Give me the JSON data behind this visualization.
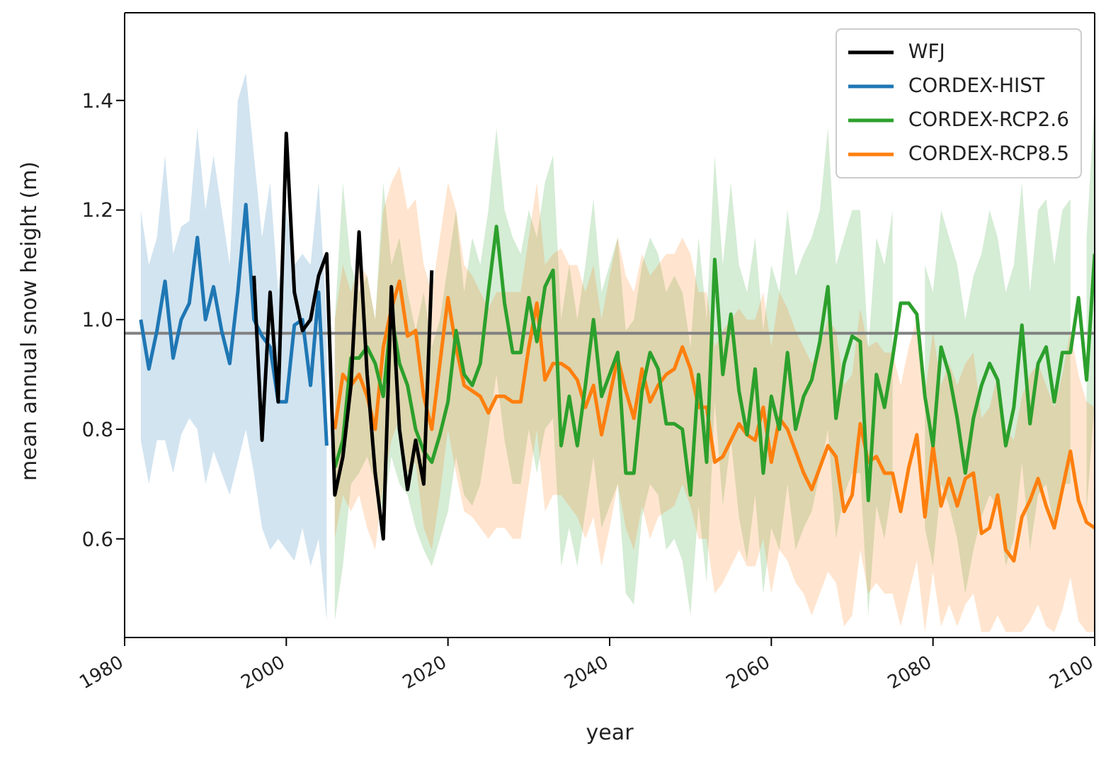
{
  "chart_data": {
    "type": "line",
    "xlabel": "year",
    "ylabel": "mean annual snow height (m)",
    "xlim": [
      1980,
      2100
    ],
    "xticks": [
      1980,
      2000,
      2020,
      2040,
      2060,
      2080,
      2100
    ],
    "ylim": [
      0.42,
      1.56
    ],
    "yticks": [
      0.6,
      0.8,
      {
        "value": 1.0,
        "label": "1.0"
      },
      1.2,
      1.4
    ],
    "legend": "top right",
    "ref_lines": [
      {
        "axis": "y",
        "value": 0.975,
        "color": "#808080"
      }
    ],
    "series": [
      {
        "name": "WFJ",
        "type": "line",
        "color": "#000000",
        "x": [
          1996,
          1997,
          1998,
          1999,
          2000,
          2001,
          2002,
          2003,
          2004,
          2005,
          2006,
          2007,
          2008,
          2009,
          2010,
          2011,
          2012,
          2013,
          2014,
          2015,
          2016,
          2017,
          2018
        ],
        "values": [
          1.08,
          0.78,
          1.05,
          0.85,
          1.34,
          1.05,
          0.98,
          1.0,
          1.08,
          1.12,
          0.68,
          0.75,
          0.88,
          1.16,
          0.9,
          0.72,
          0.6,
          1.06,
          0.8,
          0.69,
          0.78,
          0.7,
          1.09
        ]
      },
      {
        "name": "CORDEX-HIST",
        "type": "line",
        "color": "#1f77b4",
        "x": [
          1982,
          1983,
          1984,
          1985,
          1986,
          1987,
          1988,
          1989,
          1990,
          1991,
          1992,
          1993,
          1994,
          1995,
          1996,
          1997,
          1998,
          1999,
          2000,
          2001,
          2002,
          2003,
          2004,
          2005
        ],
        "values": [
          1.0,
          0.91,
          0.98,
          1.07,
          0.93,
          1.0,
          1.03,
          1.15,
          1.0,
          1.06,
          0.98,
          0.92,
          1.05,
          1.21,
          1.0,
          0.97,
          0.95,
          0.85,
          0.85,
          0.99,
          1.0,
          0.88,
          1.05,
          0.77
        ],
        "upper": [
          1.2,
          1.1,
          1.15,
          1.3,
          1.12,
          1.17,
          1.18,
          1.35,
          1.2,
          1.3,
          1.2,
          1.1,
          1.4,
          1.45,
          1.3,
          1.15,
          1.25,
          1.05,
          1.2,
          1.1,
          1.12,
          1.1,
          1.25,
          1.0
        ],
        "lower": [
          0.78,
          0.7,
          0.78,
          0.78,
          0.72,
          0.79,
          0.82,
          0.8,
          0.7,
          0.76,
          0.72,
          0.68,
          0.74,
          0.8,
          0.72,
          0.62,
          0.58,
          0.6,
          0.58,
          0.56,
          0.62,
          0.55,
          0.6,
          0.45
        ]
      },
      {
        "name": "CORDEX-RCP2.6",
        "type": "line",
        "color": "#2ca02c",
        "x": [
          2006,
          2007,
          2008,
          2009,
          2010,
          2011,
          2012,
          2013,
          2014,
          2015,
          2016,
          2017,
          2018,
          2019,
          2020,
          2021,
          2022,
          2023,
          2024,
          2025,
          2026,
          2027,
          2028,
          2029,
          2030,
          2031,
          2032,
          2033,
          2034,
          2035,
          2036,
          2037,
          2038,
          2039,
          2040,
          2041,
          2042,
          2043,
          2044,
          2045,
          2046,
          2047,
          2048,
          2049,
          2050,
          2051,
          2052,
          2053,
          2054,
          2055,
          2056,
          2057,
          2058,
          2059,
          2060,
          2061,
          2062,
          2063,
          2064,
          2065,
          2066,
          2067,
          2068,
          2069,
          2070,
          2071,
          2072,
          2073,
          2074,
          2075,
          2076,
          2077,
          2078,
          2079,
          2080,
          2081,
          2082,
          2083,
          2084,
          2085,
          2086,
          2087,
          2088,
          2089,
          2090,
          2091,
          2092,
          2093,
          2094,
          2095,
          2096,
          2097,
          2098,
          2099,
          2100
        ],
        "values": [
          0.73,
          0.78,
          0.93,
          0.93,
          0.95,
          0.92,
          0.86,
          1.01,
          0.92,
          0.88,
          0.8,
          0.76,
          0.74,
          0.79,
          0.85,
          0.98,
          0.9,
          0.88,
          0.92,
          1.05,
          1.17,
          1.03,
          0.94,
          0.94,
          1.04,
          0.96,
          1.06,
          1.09,
          0.77,
          0.86,
          0.77,
          0.88,
          1.0,
          0.86,
          0.9,
          0.94,
          0.72,
          0.72,
          0.87,
          0.94,
          0.91,
          0.81,
          0.81,
          0.8,
          0.68,
          0.9,
          0.74,
          1.11,
          0.9,
          1.01,
          0.87,
          0.79,
          0.91,
          0.72,
          0.86,
          0.8,
          0.94,
          0.8,
          0.86,
          0.89,
          0.96,
          1.06,
          0.82,
          0.92,
          0.97,
          0.96,
          0.67,
          0.9,
          0.84,
          0.93,
          1.03,
          1.03,
          1.01,
          0.86,
          0.77,
          0.95,
          0.9,
          0.82,
          0.72,
          0.82,
          0.88,
          0.92,
          0.89,
          0.77,
          0.84,
          0.99,
          0.81,
          0.92,
          0.95,
          0.85,
          0.94,
          0.94,
          1.04,
          0.89,
          1.12
        ],
        "upper": [
          1.0,
          1.25,
          1.1,
          1.05,
          1.08,
          1.0,
          1.25,
          1.1,
          1.15,
          1.05,
          0.98,
          1.05,
          0.95,
          1.0,
          1.1,
          1.2,
          1.05,
          1.15,
          1.1,
          1.2,
          1.35,
          1.2,
          1.15,
          1.12,
          1.2,
          1.15,
          1.25,
          1.3,
          1.0,
          1.1,
          1.0,
          1.1,
          1.22,
          1.05,
          1.1,
          1.15,
          0.98,
          1.0,
          1.1,
          1.15,
          1.12,
          1.05,
          1.08,
          1.05,
          0.95,
          1.15,
          1.0,
          1.3,
          1.1,
          1.25,
          1.1,
          1.05,
          1.15,
          0.98,
          1.1,
          1.05,
          1.2,
          1.08,
          1.12,
          1.15,
          1.2,
          1.35,
          1.1,
          1.15,
          1.2,
          1.2,
          0.95,
          1.15,
          1.1,
          1.2,
          null,
          null,
          null,
          1.1,
          1.05,
          1.2,
          1.15,
          1.1,
          1.0,
          1.08,
          1.12,
          1.2,
          1.15,
          1.05,
          1.1,
          1.25,
          1.05,
          1.2,
          1.22,
          1.1,
          1.2,
          1.22,
          null,
          1.15,
          1.4
        ],
        "lower": [
          0.45,
          0.55,
          0.7,
          0.72,
          0.75,
          0.7,
          0.65,
          0.75,
          0.7,
          0.68,
          0.62,
          0.58,
          0.55,
          0.6,
          0.65,
          0.75,
          0.68,
          0.66,
          0.7,
          0.8,
          0.9,
          0.78,
          0.7,
          0.7,
          0.8,
          0.72,
          0.8,
          0.82,
          0.55,
          0.62,
          0.55,
          0.65,
          0.75,
          0.62,
          0.66,
          0.7,
          0.5,
          0.48,
          0.64,
          0.7,
          0.68,
          0.58,
          0.6,
          0.56,
          0.46,
          0.66,
          0.52,
          0.85,
          0.66,
          0.78,
          0.64,
          0.56,
          0.68,
          0.5,
          0.62,
          0.58,
          0.7,
          0.58,
          0.62,
          0.65,
          0.72,
          0.8,
          0.6,
          0.68,
          0.72,
          0.72,
          0.46,
          0.66,
          0.6,
          0.7,
          null,
          null,
          null,
          0.62,
          0.55,
          0.7,
          0.66,
          0.6,
          0.5,
          0.58,
          0.64,
          0.68,
          0.66,
          0.55,
          0.6,
          0.74,
          0.58,
          0.68,
          0.7,
          0.62,
          0.7,
          0.7,
          null,
          0.65,
          0.85
        ]
      },
      {
        "name": "CORDEX-RCP8.5",
        "type": "line",
        "color": "#ff7f0e",
        "x": [
          2006,
          2007,
          2008,
          2009,
          2010,
          2011,
          2012,
          2013,
          2014,
          2015,
          2016,
          2017,
          2018,
          2019,
          2020,
          2021,
          2022,
          2023,
          2024,
          2025,
          2026,
          2027,
          2028,
          2029,
          2030,
          2031,
          2032,
          2033,
          2034,
          2035,
          2036,
          2037,
          2038,
          2039,
          2040,
          2041,
          2042,
          2043,
          2044,
          2045,
          2046,
          2047,
          2048,
          2049,
          2050,
          2051,
          2052,
          2053,
          2054,
          2055,
          2056,
          2057,
          2058,
          2059,
          2060,
          2061,
          2062,
          2063,
          2064,
          2065,
          2066,
          2067,
          2068,
          2069,
          2070,
          2071,
          2072,
          2073,
          2074,
          2075,
          2076,
          2077,
          2078,
          2079,
          2080,
          2081,
          2082,
          2083,
          2084,
          2085,
          2086,
          2087,
          2088,
          2089,
          2090,
          2091,
          2092,
          2093,
          2094,
          2095,
          2096,
          2097,
          2098,
          2099,
          2100
        ],
        "values": [
          0.8,
          0.9,
          0.88,
          0.9,
          0.86,
          0.8,
          0.95,
          1.02,
          1.07,
          0.97,
          0.98,
          0.86,
          0.8,
          0.92,
          1.04,
          0.95,
          0.88,
          0.87,
          0.86,
          0.83,
          0.86,
          0.86,
          0.85,
          0.85,
          0.95,
          1.03,
          0.89,
          0.92,
          0.92,
          0.91,
          0.89,
          0.84,
          0.88,
          0.79,
          0.86,
          0.93,
          0.87,
          0.82,
          0.91,
          0.85,
          0.88,
          0.9,
          0.91,
          0.95,
          0.91,
          0.84,
          0.84,
          0.74,
          0.75,
          0.78,
          0.81,
          0.79,
          0.78,
          0.84,
          0.74,
          0.82,
          0.8,
          0.76,
          0.72,
          0.69,
          0.73,
          0.77,
          0.75,
          0.65,
          0.68,
          0.81,
          0.74,
          0.75,
          0.72,
          0.72,
          0.65,
          0.73,
          0.79,
          0.64,
          0.77,
          0.66,
          0.71,
          0.66,
          0.71,
          0.72,
          0.61,
          0.62,
          0.68,
          0.58,
          0.56,
          0.64,
          0.67,
          0.71,
          0.66,
          0.62,
          0.69,
          0.76,
          0.67,
          0.63,
          0.62
        ],
        "upper": [
          1.0,
          1.1,
          1.05,
          1.1,
          1.08,
          1.0,
          1.2,
          1.25,
          1.28,
          1.2,
          1.22,
          1.1,
          1.05,
          1.15,
          1.25,
          1.2,
          1.1,
          1.08,
          1.05,
          1.02,
          1.05,
          1.05,
          1.05,
          1.05,
          1.15,
          1.25,
          1.1,
          1.12,
          1.13,
          1.1,
          1.1,
          1.05,
          1.1,
          1.0,
          1.08,
          1.15,
          1.08,
          1.05,
          1.12,
          1.08,
          1.1,
          1.12,
          1.12,
          1.15,
          1.12,
          1.05,
          1.05,
          0.95,
          0.98,
          1.0,
          1.02,
          1.0,
          1.0,
          1.05,
          0.95,
          1.05,
          1.02,
          0.98,
          0.95,
          0.92,
          0.95,
          1.0,
          0.98,
          0.88,
          0.9,
          1.02,
          0.95,
          0.96,
          0.94,
          0.94,
          0.88,
          0.95,
          1.0,
          0.86,
          0.98,
          0.88,
          0.92,
          0.88,
          0.92,
          0.94,
          0.82,
          0.84,
          0.9,
          0.8,
          0.78,
          0.86,
          0.9,
          0.92,
          0.88,
          0.84,
          0.9,
          0.98,
          0.9,
          0.85,
          0.84
        ],
        "lower": [
          0.6,
          0.68,
          0.65,
          0.68,
          0.62,
          0.58,
          0.7,
          0.78,
          0.82,
          0.72,
          0.74,
          0.62,
          0.58,
          0.68,
          0.8,
          0.72,
          0.65,
          0.64,
          0.62,
          0.6,
          0.62,
          0.62,
          0.6,
          0.6,
          0.7,
          0.8,
          0.65,
          0.68,
          0.68,
          0.66,
          0.64,
          0.6,
          0.64,
          0.55,
          0.62,
          0.7,
          0.62,
          0.58,
          0.66,
          0.6,
          0.64,
          0.65,
          0.66,
          0.7,
          0.66,
          0.6,
          0.6,
          0.5,
          0.52,
          0.55,
          0.58,
          0.55,
          0.55,
          0.6,
          0.5,
          0.58,
          0.56,
          0.52,
          0.5,
          0.46,
          0.5,
          0.54,
          0.52,
          0.44,
          0.46,
          0.58,
          0.5,
          0.52,
          0.5,
          0.5,
          0.44,
          0.5,
          0.56,
          0.43,
          0.54,
          0.44,
          0.48,
          0.44,
          0.48,
          0.5,
          0.43,
          0.43,
          0.46,
          0.43,
          0.43,
          0.43,
          0.45,
          0.48,
          0.44,
          0.43,
          0.47,
          0.53,
          0.45,
          0.43,
          0.43
        ]
      }
    ]
  }
}
